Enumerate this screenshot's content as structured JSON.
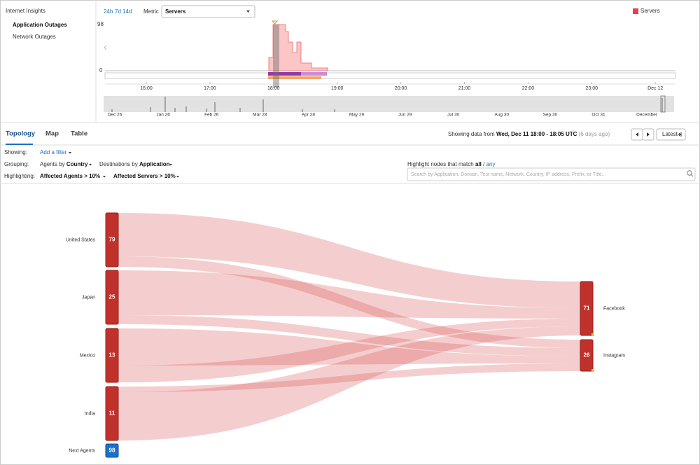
{
  "sidebar": {
    "title": "Internet Insights",
    "items": [
      "Application Outages",
      "Network Outages"
    ]
  },
  "timeline": {
    "ranges": [
      "24h",
      "7d",
      "14d"
    ],
    "metric_label": "Metric",
    "metric_value": "Servers",
    "legend": "Servers",
    "y_max": "98",
    "y_min": "0",
    "axis_labels": [
      "16:00",
      "17:00",
      "18:00",
      "19:00",
      "20:00",
      "21:00",
      "22:00",
      "23:00",
      "Dec 12"
    ],
    "overview_labels": [
      "Dec 26",
      "Jan 26",
      "Feb 26",
      "Mar 28",
      "Apr 28",
      "May 29",
      "Jun 29",
      "Jul 30",
      "Aug 30",
      "Sep 30",
      "Oct 31",
      "December"
    ]
  },
  "tabs": [
    "Topology",
    "Map",
    "Table"
  ],
  "status": {
    "prefix": "Showing data from",
    "range": "Wed, Dec 11 18:00 - 18:05 UTC",
    "age": "(6 days ago)",
    "latest": "Latest"
  },
  "filters": {
    "showing_label": "Showing:",
    "add_filter": "Add a filter",
    "grouping_label": "Grouping:",
    "agents_by": "Agents by",
    "agents_group": "Country",
    "destinations_by": "Destinations by",
    "destinations_group": "Application",
    "highlighting_label": "Highlighting:",
    "affected_agents": "Affected Agents > 10%",
    "affected_servers": "Affected Servers > 10%"
  },
  "highlight": {
    "prefix": "Highlight nodes that match",
    "all": "all",
    "separator": "/",
    "any": "any",
    "search_placeholder": "Search by Application, Domain, Test name, Network, Country, IP address, Prefix, or Title..."
  },
  "sankey": {
    "sources": [
      {
        "label": "United States",
        "value": 79
      },
      {
        "label": "Japan",
        "value": 25
      },
      {
        "label": "Mexico",
        "value": 13
      },
      {
        "label": "India",
        "value": 11
      },
      {
        "label": "Next Agents",
        "value": 98
      }
    ],
    "destinations": [
      {
        "label": "Facebook",
        "value": 71
      },
      {
        "label": "Instagram",
        "value": 26
      }
    ]
  }
}
